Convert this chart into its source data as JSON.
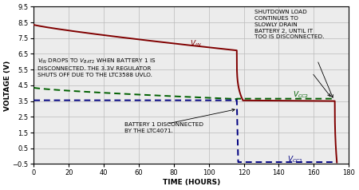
{
  "xlabel": "TIME (HOURS)",
  "ylabel": "VOLTAGE (V)",
  "xlim": [
    0,
    180
  ],
  "ylim": [
    -0.5,
    9.5
  ],
  "xticks": [
    0,
    20,
    40,
    60,
    80,
    100,
    120,
    140,
    160,
    180
  ],
  "yticks": [
    -0.5,
    0.5,
    1.5,
    2.5,
    3.5,
    4.5,
    5.5,
    6.5,
    7.5,
    8.5,
    9.5
  ],
  "background_color": "#ececec",
  "grid_color": "#bbbbbb",
  "vin_color": "#800000",
  "vcc2_color": "#006000",
  "vcc1_color": "#000080",
  "disconnect_time": 116,
  "bat2_disconnect_time": 172,
  "vin_start": 8.35,
  "vin_at_disconnect": 6.72,
  "vbat2_after_drop": 3.54,
  "vbat2_end": 3.5,
  "vcc2_start": 4.35,
  "vcc2_mid": 3.63,
  "vcc2_flat": 3.65,
  "vcc1_on_level": 3.55,
  "vcc1_off_level": -0.38,
  "fontsize_label": 6.5,
  "fontsize_tick": 6.0,
  "fontsize_annot": 5.2,
  "fontsize_curve_label": 6.5
}
